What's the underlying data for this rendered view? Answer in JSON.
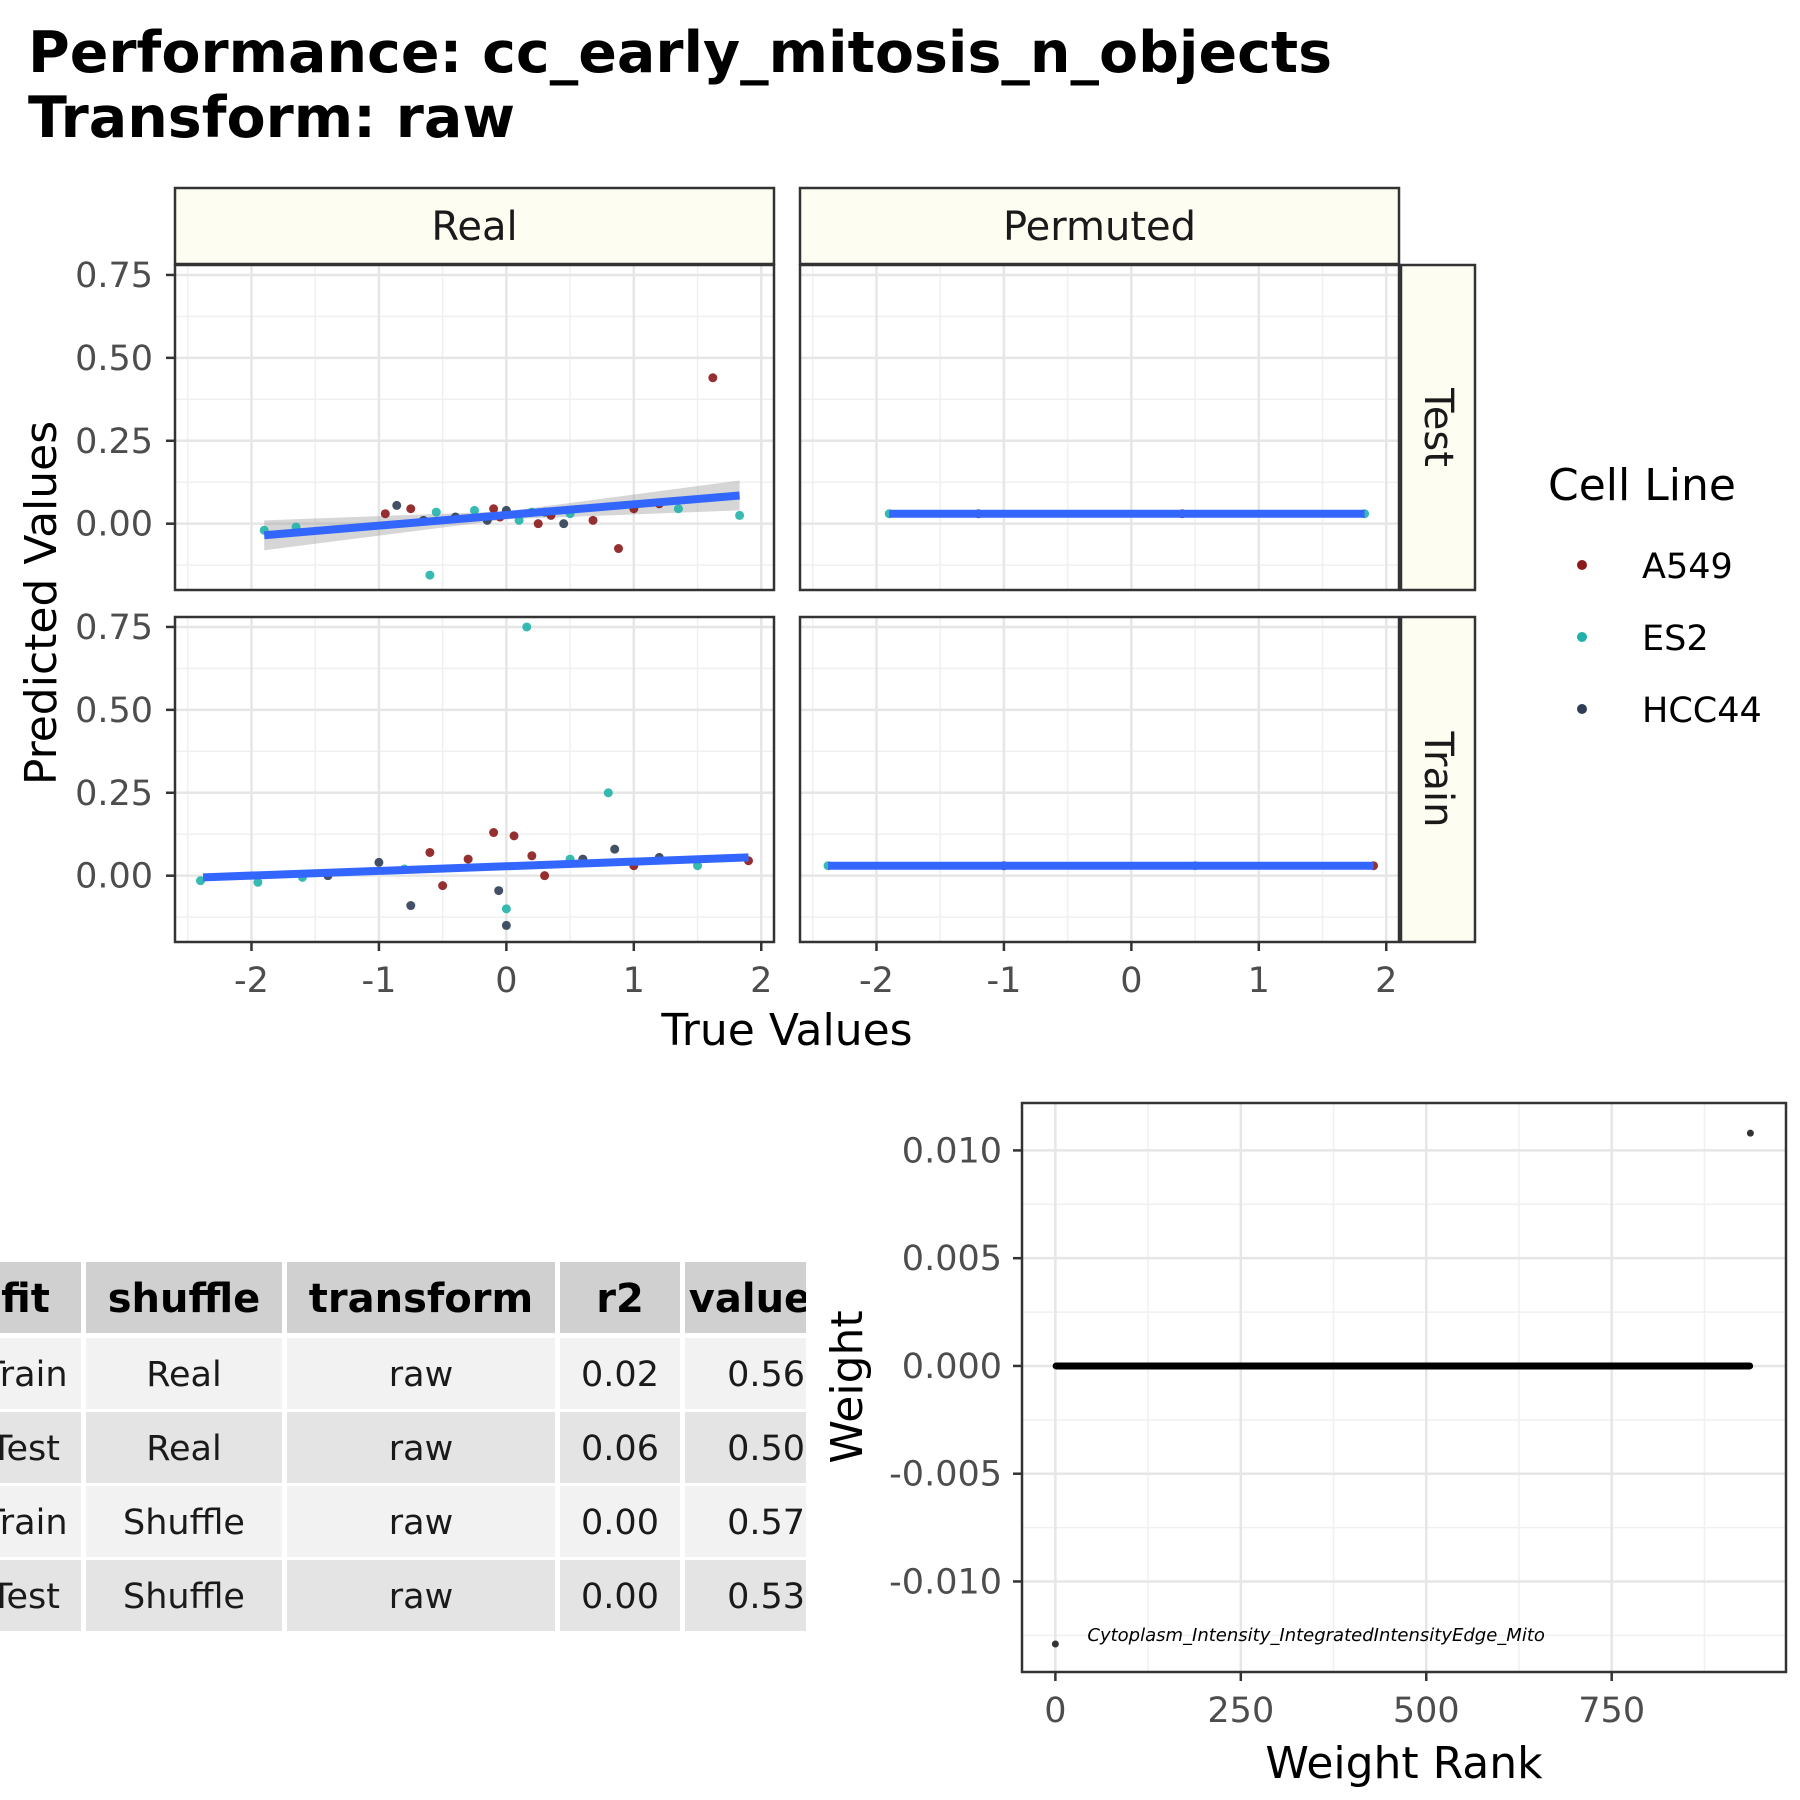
{
  "title_line1": "Performance: cc_early_mitosis_n_objects",
  "title_line2": "Transform: raw",
  "colors": {
    "A549": "#8B1A1A",
    "ES2": "#20B2AA",
    "HCC44": "#2F3E55",
    "fit_line": "#3366FF",
    "strip_bg": "#FDFDF2"
  },
  "chart_data": [
    {
      "type": "scatter",
      "facets_columns": [
        "Real",
        "Permuted"
      ],
      "facets_rows": [
        "Test",
        "Train"
      ],
      "xlabel": "True Values",
      "ylabel": "Predicted Values",
      "x_ticks": [
        "-2",
        "-1",
        "0",
        "1",
        "2"
      ],
      "y_ticks": [
        "0.75",
        "0.50",
        "0.25",
        "0.00"
      ],
      "xlim": [
        -2.6,
        2.1
      ],
      "ylim_test": [
        -0.2,
        0.78
      ],
      "ylim_train": [
        -0.2,
        0.78
      ],
      "legend_title": "Cell Line",
      "legend_items": [
        "A549",
        "ES2",
        "HCC44"
      ],
      "legend_position": "right",
      "grid": true,
      "panels": {
        "Real_Test": {
          "fit": [
            [
              -1.9,
              -0.035
            ],
            [
              1.83,
              0.085
            ]
          ],
          "points": [
            [
              1.62,
              0.44,
              "A549"
            ],
            [
              1.83,
              0.025,
              "ES2"
            ],
            [
              0.88,
              -0.075,
              "A549"
            ],
            [
              -0.6,
              -0.155,
              "ES2"
            ],
            [
              -1.9,
              -0.02,
              "ES2"
            ],
            [
              -1.65,
              -0.01,
              "ES2"
            ],
            [
              -0.86,
              0.055,
              "HCC44"
            ],
            [
              -0.95,
              0.03,
              "A549"
            ],
            [
              -0.75,
              0.045,
              "A549"
            ],
            [
              -0.55,
              0.035,
              "ES2"
            ],
            [
              -0.4,
              0.02,
              "HCC44"
            ],
            [
              -0.25,
              0.04,
              "ES2"
            ],
            [
              -0.15,
              0.01,
              "HCC44"
            ],
            [
              -0.1,
              0.045,
              "A549"
            ],
            [
              0.0,
              0.04,
              "HCC44"
            ],
            [
              0.1,
              0.01,
              "ES2"
            ],
            [
              0.2,
              0.035,
              "ES2"
            ],
            [
              0.25,
              0.0,
              "A549"
            ],
            [
              0.35,
              0.025,
              "A549"
            ],
            [
              0.45,
              0.0,
              "HCC44"
            ],
            [
              0.5,
              0.03,
              "ES2"
            ],
            [
              0.68,
              0.01,
              "A549"
            ],
            [
              1.0,
              0.045,
              "A549"
            ],
            [
              1.2,
              0.06,
              "A549"
            ],
            [
              1.35,
              0.045,
              "ES2"
            ],
            [
              -0.65,
              0.01,
              "HCC44"
            ],
            [
              -0.05,
              0.02,
              "A549"
            ],
            [
              0.3,
              0.035,
              "HCC44"
            ]
          ]
        },
        "Permuted_Test": {
          "fit": [
            [
              -1.9,
              0.03
            ],
            [
              1.83,
              0.03
            ]
          ],
          "points": [
            [
              -1.9,
              0.03,
              "ES2"
            ],
            [
              1.83,
              0.03,
              "ES2"
            ],
            [
              -1.2,
              0.03,
              "HCC44"
            ],
            [
              0.4,
              0.03,
              "A549"
            ]
          ]
        },
        "Real_Train": {
          "fit": [
            [
              -2.38,
              -0.005
            ],
            [
              1.9,
              0.055
            ]
          ],
          "points": [
            [
              0.16,
              0.75,
              "ES2"
            ],
            [
              0.8,
              0.25,
              "ES2"
            ],
            [
              -0.1,
              0.13,
              "A549"
            ],
            [
              0.06,
              0.12,
              "A549"
            ],
            [
              0.0,
              -0.1,
              "ES2"
            ],
            [
              0.0,
              -0.15,
              "HCC44"
            ],
            [
              -0.06,
              -0.045,
              "HCC44"
            ],
            [
              -0.75,
              -0.09,
              "HCC44"
            ],
            [
              -0.5,
              -0.03,
              "A549"
            ],
            [
              -2.4,
              -0.015,
              "ES2"
            ],
            [
              -1.95,
              -0.02,
              "ES2"
            ],
            [
              1.9,
              0.045,
              "A549"
            ],
            [
              0.85,
              0.08,
              "HCC44"
            ],
            [
              -1.0,
              0.04,
              "HCC44"
            ],
            [
              -0.6,
              0.07,
              "A549"
            ],
            [
              0.5,
              0.05,
              "ES2"
            ],
            [
              0.6,
              0.05,
              "HCC44"
            ],
            [
              0.2,
              0.06,
              "A549"
            ],
            [
              -0.3,
              0.05,
              "A549"
            ],
            [
              1.2,
              0.055,
              "HCC44"
            ],
            [
              1.5,
              0.03,
              "ES2"
            ],
            [
              -1.4,
              0.0,
              "HCC44"
            ],
            [
              -1.6,
              -0.005,
              "ES2"
            ],
            [
              0.3,
              0.0,
              "A549"
            ],
            [
              -0.8,
              0.02,
              "ES2"
            ],
            [
              1.0,
              0.03,
              "A549"
            ]
          ]
        },
        "Permuted_Train": {
          "fit": [
            [
              -2.38,
              0.03
            ],
            [
              1.9,
              0.03
            ]
          ],
          "points": [
            [
              -2.38,
              0.03,
              "ES2"
            ],
            [
              1.9,
              0.03,
              "A549"
            ],
            [
              -1.0,
              0.03,
              "HCC44"
            ],
            [
              0.5,
              0.03,
              "ES2"
            ]
          ]
        }
      }
    },
    {
      "type": "table",
      "columns": [
        "fit",
        "shuffle",
        "transform",
        "r2",
        "value"
      ],
      "rows": [
        [
          "Train",
          "Real",
          "raw",
          "0.02",
          "0.56"
        ],
        [
          "Test",
          "Real",
          "raw",
          "0.06",
          "0.50"
        ],
        [
          "Train",
          "Shuffle",
          "raw",
          "0.00",
          "0.57"
        ],
        [
          "Test",
          "Shuffle",
          "raw",
          "0.00",
          "0.53"
        ]
      ]
    },
    {
      "type": "scatter",
      "xlabel": "Weight Rank",
      "ylabel": "Weight",
      "x_ticks": [
        "0",
        "250",
        "500",
        "750"
      ],
      "y_ticks": [
        "0.010",
        "0.005",
        "0.000",
        "-0.005",
        "-0.010"
      ],
      "xlim": [
        -45,
        985
      ],
      "ylim": [
        -0.0142,
        0.0122
      ],
      "n_features": 937,
      "top_weight": [
        937,
        0.0108
      ],
      "bottom_weight": [
        0,
        -0.0129
      ],
      "annotation": "Cytoplasm_Intensity_IntegratedIntensityEdge_Mito",
      "grid": true
    }
  ]
}
